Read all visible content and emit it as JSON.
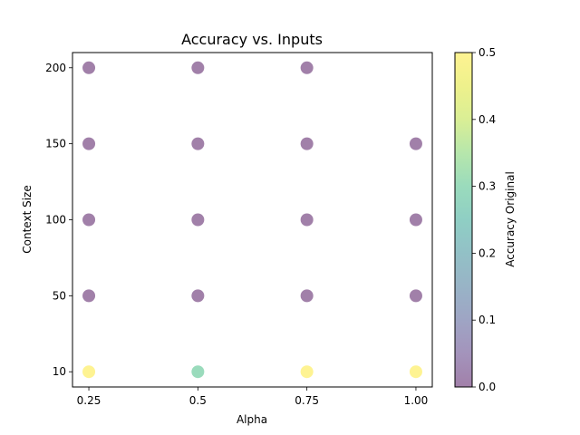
{
  "chart_data": {
    "type": "scatter",
    "title": "Accuracy vs. Inputs",
    "xlabel": "Alpha",
    "ylabel": "Context Size",
    "x_ticks": [
      "0.25",
      "0.5",
      "0.75",
      "1.00"
    ],
    "y_ticks": [
      "10",
      "50",
      "100",
      "150",
      "200"
    ],
    "y_scale": "categorical",
    "grid": false,
    "colorbar": {
      "label": "Accuracy Original",
      "min": 0.0,
      "max": 0.5,
      "ticks": [
        "0.0",
        "0.1",
        "0.2",
        "0.3",
        "0.4",
        "0.5"
      ],
      "colormap": "viridis"
    },
    "marker_alpha": 0.5,
    "points": [
      {
        "x": 0.25,
        "y": "10",
        "value": 0.5
      },
      {
        "x": 0.25,
        "y": "50",
        "value": 0.0
      },
      {
        "x": 0.25,
        "y": "100",
        "value": 0.0
      },
      {
        "x": 0.25,
        "y": "150",
        "value": 0.0
      },
      {
        "x": 0.25,
        "y": "200",
        "value": 0.0
      },
      {
        "x": 0.5,
        "y": "10",
        "value": 0.3
      },
      {
        "x": 0.5,
        "y": "50",
        "value": 0.0
      },
      {
        "x": 0.5,
        "y": "100",
        "value": 0.0
      },
      {
        "x": 0.5,
        "y": "150",
        "value": 0.0
      },
      {
        "x": 0.5,
        "y": "200",
        "value": 0.0
      },
      {
        "x": 0.75,
        "y": "10",
        "value": 0.5
      },
      {
        "x": 0.75,
        "y": "50",
        "value": 0.0
      },
      {
        "x": 0.75,
        "y": "100",
        "value": 0.0
      },
      {
        "x": 0.75,
        "y": "150",
        "value": 0.0
      },
      {
        "x": 0.75,
        "y": "200",
        "value": 0.0
      },
      {
        "x": 1.0,
        "y": "10",
        "value": 0.5
      },
      {
        "x": 1.0,
        "y": "50",
        "value": 0.0
      },
      {
        "x": 1.0,
        "y": "100",
        "value": 0.0
      },
      {
        "x": 1.0,
        "y": "150",
        "value": 0.0
      }
    ]
  }
}
